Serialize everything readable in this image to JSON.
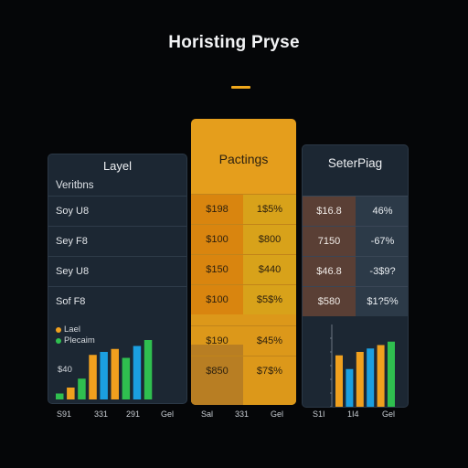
{
  "title": "Horisting Pryse",
  "colors": {
    "background": "#050608",
    "accent": "#e59e1c",
    "panel": "#1c2733",
    "blue": "#1b9fe0",
    "green": "#2fbf4f",
    "orange": "#f0a01e"
  },
  "left_card": {
    "header": "Layel",
    "subheader": "Veritbns",
    "rows": [
      "Soy U8",
      "Sey F8",
      "Sey U8",
      "Sof F8"
    ],
    "legend": [
      {
        "label": "Lael",
        "color": "#f0a01e"
      },
      {
        "label": "Plecaim",
        "color": "#2fbf4f"
      }
    ],
    "axis_value": "$40",
    "x_labels": [
      "S91",
      "331",
      "291",
      "Gel"
    ]
  },
  "middle_card": {
    "header": "Pactings",
    "rows": [
      [
        "$198",
        "1$5%"
      ],
      [
        "$100",
        "$800"
      ],
      [
        "$150",
        "$440"
      ],
      [
        "$100",
        "$5$%"
      ],
      [
        "$190",
        "$45%"
      ],
      [
        "$850",
        "$7$%"
      ]
    ],
    "x_labels": [
      "Sal",
      "331",
      "Gel"
    ]
  },
  "right_card": {
    "header": "SeterPiag",
    "rows": [
      [
        "$16.8",
        "46%"
      ],
      [
        "7150",
        "-67%"
      ],
      [
        "$46.8",
        "-3$9?"
      ],
      [
        "$580",
        "$1?5%"
      ]
    ],
    "x_labels": [
      "S1I",
      "1I4",
      "Gel"
    ]
  },
  "chart_data": [
    {
      "type": "bar",
      "title": "",
      "series": [
        {
          "values": [
            1,
            2,
            3.5,
            7.5,
            8,
            8.5,
            7,
            9,
            10
          ]
        }
      ],
      "colors": [
        "#2fbf4f",
        "#f0a01e",
        "#2fbf4f",
        "#f0a01e",
        "#1b9fe0",
        "#f0a01e",
        "#2fbf4f",
        "#1b9fe0",
        "#2fbf4f"
      ],
      "ylim": [
        0,
        12
      ],
      "grid": false
    },
    {
      "type": "bar",
      "title": "",
      "series": [
        {
          "values": [
            7.5,
            5.5,
            8,
            8.5,
            9,
            9.5
          ]
        }
      ],
      "colors": [
        "#f0a01e",
        "#1b9fe0",
        "#f0a01e",
        "#1b9fe0",
        "#f0a01e",
        "#2fbf4f"
      ],
      "ylim": [
        0,
        12
      ],
      "grid": false
    }
  ]
}
